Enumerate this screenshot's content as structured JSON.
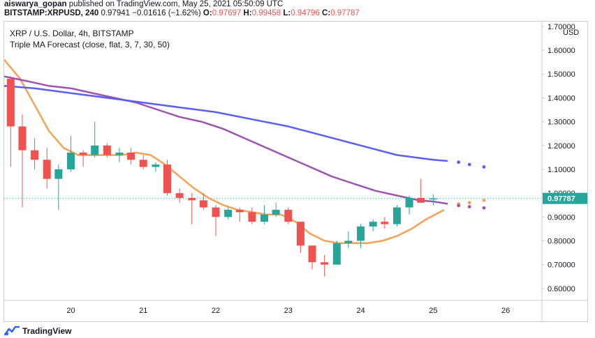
{
  "header": {
    "author": "aiswarya_gopan",
    "published_text": "published on TradingView.com, May 25, 2021 05:50:09 UTC",
    "symbol_line": "BITSTAMP:XRPUSD, 240",
    "last": "0.97941",
    "change": "−0.01616 (−1.62%)",
    "o_label": "O:",
    "o_value": "0.97697",
    "h_label": "H:",
    "h_value": "0.99458",
    "l_label": "L:",
    "l_value": "0.94796",
    "c_label": "C:",
    "c_value": "0.97787"
  },
  "legend": {
    "title": "XRP / U.S. Dollar, 4h, BITSTAMP",
    "indicator": "Triple MA Forecast (close, flat, 3, 7, 30, 50)"
  },
  "footer": {
    "brand": "TradingView"
  },
  "colors": {
    "up": "#26a69a",
    "down": "#ef5350",
    "ma_fast": "#f7a154",
    "ma_mid": "#a052b0",
    "ma_slow": "#5b5ff0",
    "price_label_bg": "#26a69a"
  },
  "chart_data": {
    "type": "candlestick",
    "currency_label": "USD",
    "price_label": "0.97787",
    "current_price": 0.97787,
    "ylim": [
      0.55,
      1.72
    ],
    "y_ticks": [
      "1.70000",
      "1.60000",
      "1.50000",
      "1.40000",
      "1.30000",
      "1.20000",
      "1.10000",
      "1.00000",
      "0.90000",
      "0.80000",
      "0.70000",
      "0.60000"
    ],
    "y_tick_values": [
      1.7,
      1.6,
      1.5,
      1.4,
      1.3,
      1.2,
      1.1,
      1.0,
      0.9,
      0.8,
      0.7,
      0.6
    ],
    "x_ticks": [
      "20",
      "21",
      "22",
      "23",
      "24",
      "25",
      "26"
    ],
    "x_tick_days": [
      20,
      21,
      22,
      23,
      24,
      25,
      26
    ],
    "xlim": [
      19.08,
      26.5
    ],
    "candles": [
      {
        "t": 19.17,
        "o": 1.48,
        "h": 1.49,
        "l": 1.11,
        "c": 1.28
      },
      {
        "t": 19.33,
        "o": 1.28,
        "h": 1.33,
        "l": 0.94,
        "c": 1.18
      },
      {
        "t": 19.5,
        "o": 1.18,
        "h": 1.23,
        "l": 1.1,
        "c": 1.14
      },
      {
        "t": 19.67,
        "o": 1.14,
        "h": 1.19,
        "l": 1.02,
        "c": 1.06
      },
      {
        "t": 19.83,
        "o": 1.06,
        "h": 1.12,
        "l": 0.93,
        "c": 1.1
      },
      {
        "t": 20.0,
        "o": 1.1,
        "h": 1.24,
        "l": 1.09,
        "c": 1.17
      },
      {
        "t": 20.17,
        "o": 1.17,
        "h": 1.18,
        "l": 1.11,
        "c": 1.16
      },
      {
        "t": 20.33,
        "o": 1.16,
        "h": 1.3,
        "l": 1.15,
        "c": 1.2
      },
      {
        "t": 20.5,
        "o": 1.2,
        "h": 1.21,
        "l": 1.15,
        "c": 1.16
      },
      {
        "t": 20.67,
        "o": 1.16,
        "h": 1.19,
        "l": 1.13,
        "c": 1.17
      },
      {
        "t": 20.83,
        "o": 1.17,
        "h": 1.19,
        "l": 1.12,
        "c": 1.14
      },
      {
        "t": 21.0,
        "o": 1.14,
        "h": 1.16,
        "l": 1.1,
        "c": 1.11
      },
      {
        "t": 21.17,
        "o": 1.11,
        "h": 1.13,
        "l": 1.09,
        "c": 1.12
      },
      {
        "t": 21.33,
        "o": 1.12,
        "h": 1.14,
        "l": 0.99,
        "c": 1.0
      },
      {
        "t": 21.5,
        "o": 1.0,
        "h": 1.02,
        "l": 0.96,
        "c": 0.98
      },
      {
        "t": 21.67,
        "o": 0.98,
        "h": 1.0,
        "l": 0.87,
        "c": 0.97
      },
      {
        "t": 21.83,
        "o": 0.97,
        "h": 1.0,
        "l": 0.93,
        "c": 0.94
      },
      {
        "t": 22.0,
        "o": 0.94,
        "h": 0.95,
        "l": 0.82,
        "c": 0.9
      },
      {
        "t": 22.17,
        "o": 0.9,
        "h": 0.94,
        "l": 0.89,
        "c": 0.93
      },
      {
        "t": 22.33,
        "o": 0.93,
        "h": 0.94,
        "l": 0.88,
        "c": 0.92
      },
      {
        "t": 22.5,
        "o": 0.92,
        "h": 0.94,
        "l": 0.87,
        "c": 0.88
      },
      {
        "t": 22.67,
        "o": 0.88,
        "h": 0.95,
        "l": 0.87,
        "c": 0.91
      },
      {
        "t": 22.83,
        "o": 0.91,
        "h": 0.96,
        "l": 0.9,
        "c": 0.93
      },
      {
        "t": 23.0,
        "o": 0.93,
        "h": 0.94,
        "l": 0.87,
        "c": 0.88
      },
      {
        "t": 23.17,
        "o": 0.88,
        "h": 0.88,
        "l": 0.75,
        "c": 0.78
      },
      {
        "t": 23.33,
        "o": 0.78,
        "h": 0.78,
        "l": 0.68,
        "c": 0.71
      },
      {
        "t": 23.5,
        "o": 0.71,
        "h": 0.74,
        "l": 0.65,
        "c": 0.7
      },
      {
        "t": 23.67,
        "o": 0.7,
        "h": 0.8,
        "l": 0.7,
        "c": 0.79
      },
      {
        "t": 23.83,
        "o": 0.79,
        "h": 0.84,
        "l": 0.77,
        "c": 0.8
      },
      {
        "t": 24.0,
        "o": 0.8,
        "h": 0.87,
        "l": 0.77,
        "c": 0.86
      },
      {
        "t": 24.17,
        "o": 0.86,
        "h": 0.89,
        "l": 0.84,
        "c": 0.88
      },
      {
        "t": 24.33,
        "o": 0.88,
        "h": 0.9,
        "l": 0.85,
        "c": 0.87
      },
      {
        "t": 24.5,
        "o": 0.87,
        "h": 0.95,
        "l": 0.86,
        "c": 0.94
      },
      {
        "t": 24.67,
        "o": 0.94,
        "h": 0.99,
        "l": 0.91,
        "c": 0.98
      },
      {
        "t": 24.83,
        "o": 0.98,
        "h": 1.06,
        "l": 0.96,
        "c": 0.96
      },
      {
        "t": 25.0,
        "o": 0.97697,
        "h": 0.99458,
        "l": 0.94796,
        "c": 0.97787
      }
    ],
    "series": [
      {
        "name": "",
        "color_key": "ma_fast",
        "points": [
          [
            19.08,
            1.56
          ],
          [
            19.3,
            1.48
          ],
          [
            19.5,
            1.37
          ],
          [
            19.7,
            1.26
          ],
          [
            19.9,
            1.19
          ],
          [
            20.1,
            1.16
          ],
          [
            20.3,
            1.16
          ],
          [
            20.5,
            1.16
          ],
          [
            20.7,
            1.16
          ],
          [
            20.9,
            1.17
          ],
          [
            21.1,
            1.16
          ],
          [
            21.3,
            1.12
          ],
          [
            21.5,
            1.07
          ],
          [
            21.7,
            1.02
          ],
          [
            21.9,
            0.98
          ],
          [
            22.1,
            0.95
          ],
          [
            22.3,
            0.93
          ],
          [
            22.5,
            0.92
          ],
          [
            22.7,
            0.91
          ],
          [
            22.9,
            0.91
          ],
          [
            23.1,
            0.88
          ],
          [
            23.3,
            0.83
          ],
          [
            23.5,
            0.8
          ],
          [
            23.7,
            0.79
          ],
          [
            23.9,
            0.79
          ],
          [
            24.1,
            0.79
          ],
          [
            24.3,
            0.8
          ],
          [
            24.5,
            0.82
          ],
          [
            24.7,
            0.85
          ],
          [
            24.9,
            0.89
          ],
          [
            25.15,
            0.93
          ]
        ],
        "forecast": [
          [
            25.35,
            0.955
          ],
          [
            25.5,
            0.96
          ],
          [
            25.7,
            0.97
          ]
        ]
      },
      {
        "name": "",
        "color_key": "ma_mid",
        "points": [
          [
            19.08,
            1.49
          ],
          [
            19.4,
            1.47
          ],
          [
            19.7,
            1.45
          ],
          [
            20.0,
            1.44
          ],
          [
            20.3,
            1.42
          ],
          [
            20.6,
            1.4
          ],
          [
            20.9,
            1.38
          ],
          [
            21.2,
            1.35
          ],
          [
            21.5,
            1.32
          ],
          [
            21.8,
            1.3
          ],
          [
            22.1,
            1.27
          ],
          [
            22.4,
            1.23
          ],
          [
            22.7,
            1.19
          ],
          [
            23.0,
            1.15
          ],
          [
            23.3,
            1.11
          ],
          [
            23.6,
            1.07
          ],
          [
            23.9,
            1.04
          ],
          [
            24.2,
            1.01
          ],
          [
            24.5,
            0.99
          ],
          [
            24.8,
            0.97
          ],
          [
            25.0,
            0.965
          ],
          [
            25.2,
            0.955
          ]
        ],
        "forecast": [
          [
            25.35,
            0.948
          ],
          [
            25.5,
            0.943
          ],
          [
            25.7,
            0.938
          ]
        ]
      },
      {
        "name": "",
        "color_key": "ma_slow",
        "points": [
          [
            19.08,
            1.45
          ],
          [
            19.5,
            1.44
          ],
          [
            20.0,
            1.42
          ],
          [
            20.5,
            1.4
          ],
          [
            21.0,
            1.38
          ],
          [
            21.5,
            1.36
          ],
          [
            22.0,
            1.34
          ],
          [
            22.5,
            1.31
          ],
          [
            23.0,
            1.28
          ],
          [
            23.5,
            1.24
          ],
          [
            24.0,
            1.2
          ],
          [
            24.5,
            1.16
          ],
          [
            25.0,
            1.14
          ],
          [
            25.2,
            1.135
          ]
        ],
        "forecast": [
          [
            25.35,
            1.13
          ],
          [
            25.5,
            1.12
          ],
          [
            25.7,
            1.11
          ]
        ]
      }
    ],
    "grid": false
  }
}
